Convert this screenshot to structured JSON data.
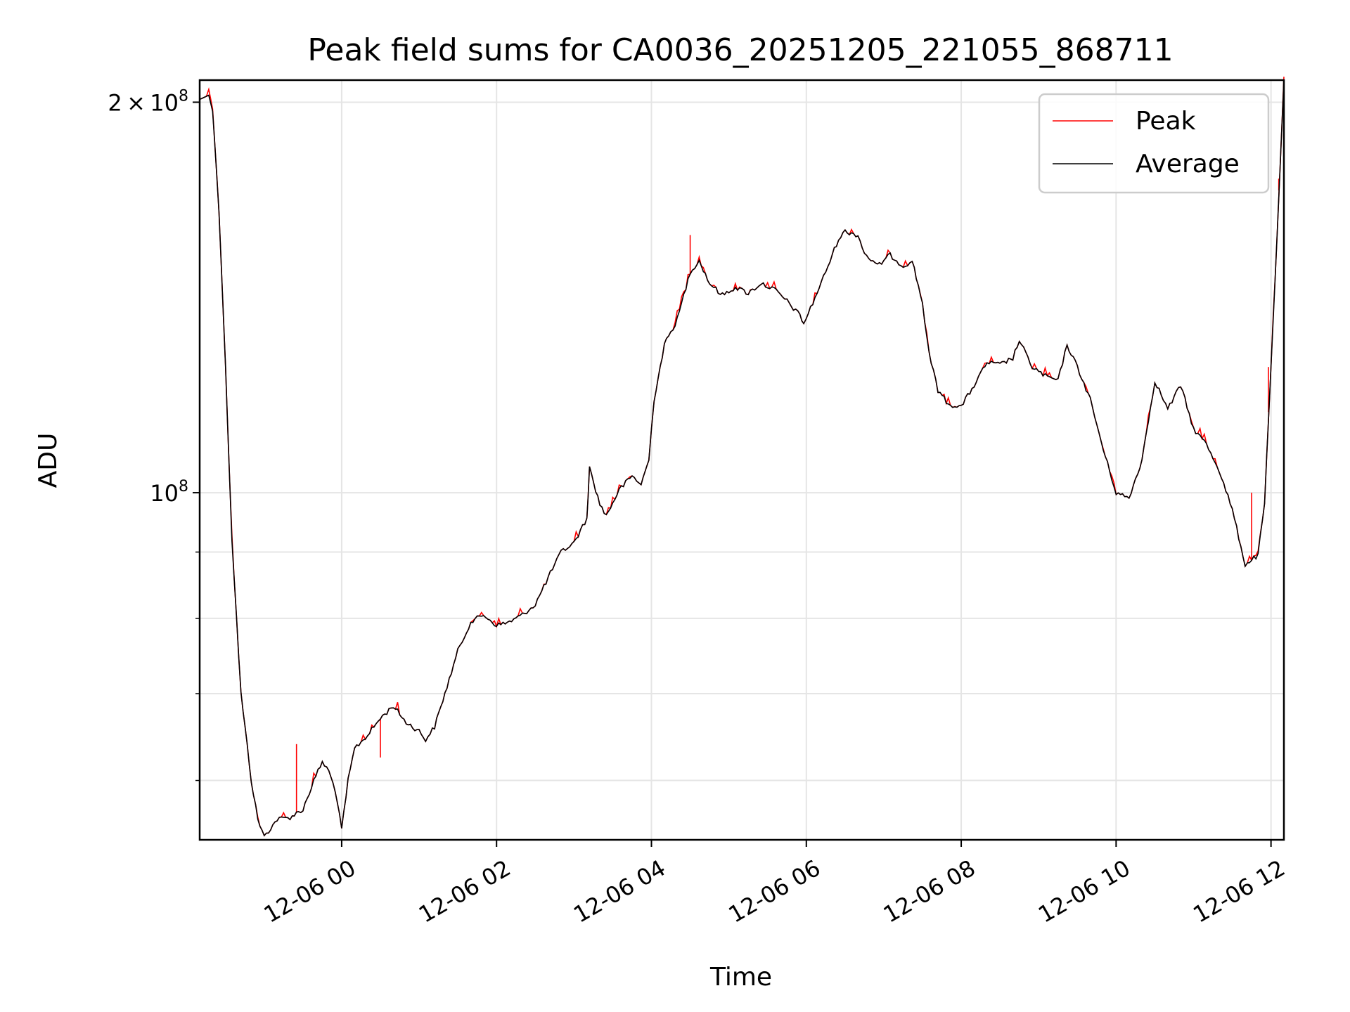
{
  "chart_data": {
    "type": "line",
    "title": "Peak field sums for CA0036_20251205_221055_868711",
    "xlabel": "Time",
    "ylabel": "ADU",
    "y_scale": "log",
    "ylim": [
      54000000,
      208000000
    ],
    "xlim": [
      "2025-12-05 22:10",
      "2025-12-06 12:10"
    ],
    "grid": true,
    "legend_position": "top-right",
    "x_ticks": [
      "12-06 00",
      "12-06 02",
      "12-06 04",
      "12-06 06",
      "12-06 08",
      "12-06 10",
      "12-06 12"
    ],
    "x_tick_times": [
      "2025-12-06 00:00",
      "2025-12-06 02:00",
      "2025-12-06 04:00",
      "2025-12-06 06:00",
      "2025-12-06 08:00",
      "2025-12-06 10:00",
      "2025-12-06 12:00"
    ],
    "y_major_ticks": [
      {
        "value": 100000000,
        "mantissa": "",
        "exponent": "8"
      },
      {
        "value": 200000000,
        "mantissa": "2",
        "exponent": "8"
      }
    ],
    "y_minor_ticks": [
      60000000,
      70000000,
      80000000,
      90000000
    ],
    "series": [
      {
        "name": "Peak",
        "color": "#ff0000",
        "spikes": [
          {
            "t": "2025-12-05 23:25",
            "v": 64000000
          },
          {
            "t": "2025-12-06 00:30",
            "v": 62500000
          },
          {
            "t": "2025-12-06 04:30",
            "v": 158000000
          },
          {
            "t": "2025-12-06 11:45",
            "v": 100000000
          },
          {
            "t": "2025-12-06 11:58",
            "v": 125000000
          },
          {
            "t": "2025-12-06 12:06",
            "v": 171000000
          }
        ]
      },
      {
        "name": "Average",
        "color": "#000000",
        "points": [
          [
            "2025-12-05 22:10",
            201000000
          ],
          [
            "2025-12-05 22:17",
            202500000
          ],
          [
            "2025-12-05 22:20",
            197000000
          ],
          [
            "2025-12-05 22:25",
            165000000
          ],
          [
            "2025-12-05 22:30",
            125000000
          ],
          [
            "2025-12-05 22:35",
            92000000
          ],
          [
            "2025-12-05 22:42",
            70000000
          ],
          [
            "2025-12-05 22:50",
            60000000
          ],
          [
            "2025-12-05 22:55",
            56000000
          ],
          [
            "2025-12-05 23:00",
            54300000
          ],
          [
            "2025-12-05 23:10",
            56000000
          ],
          [
            "2025-12-05 23:20",
            56200000
          ],
          [
            "2025-12-05 23:30",
            57000000
          ],
          [
            "2025-12-05 23:40",
            60500000
          ],
          [
            "2025-12-05 23:45",
            62000000
          ],
          [
            "2025-12-05 23:50",
            61000000
          ],
          [
            "2025-12-05 23:55",
            59000000
          ],
          [
            "2025-12-06 00:00",
            55000000
          ],
          [
            "2025-12-06 00:05",
            60000000
          ],
          [
            "2025-12-06 00:10",
            63500000
          ],
          [
            "2025-12-06 00:20",
            65000000
          ],
          [
            "2025-12-06 00:30",
            67000000
          ],
          [
            "2025-12-06 00:40",
            68500000
          ],
          [
            "2025-12-06 00:50",
            66500000
          ],
          [
            "2025-12-06 01:00",
            65500000
          ],
          [
            "2025-12-06 01:05",
            64500000
          ],
          [
            "2025-12-06 01:12",
            66000000
          ],
          [
            "2025-12-06 01:20",
            70000000
          ],
          [
            "2025-12-06 01:30",
            75500000
          ],
          [
            "2025-12-06 01:40",
            79500000
          ],
          [
            "2025-12-06 01:50",
            80500000
          ],
          [
            "2025-12-06 02:00",
            79000000
          ],
          [
            "2025-12-06 02:10",
            79500000
          ],
          [
            "2025-12-06 02:20",
            80500000
          ],
          [
            "2025-12-06 02:30",
            82000000
          ],
          [
            "2025-12-06 02:40",
            86000000
          ],
          [
            "2025-12-06 02:50",
            90000000
          ],
          [
            "2025-12-06 03:00",
            91500000
          ],
          [
            "2025-12-06 03:10",
            95500000
          ],
          [
            "2025-12-06 03:12",
            104500000
          ],
          [
            "2025-12-06 03:20",
            98000000
          ],
          [
            "2025-12-06 03:25",
            96000000
          ],
          [
            "2025-12-06 03:35",
            100500000
          ],
          [
            "2025-12-06 03:45",
            103000000
          ],
          [
            "2025-12-06 03:52",
            101500000
          ],
          [
            "2025-12-06 03:58",
            106000000
          ],
          [
            "2025-12-06 04:02",
            118000000
          ],
          [
            "2025-12-06 04:10",
            130000000
          ],
          [
            "2025-12-06 04:20",
            136000000
          ],
          [
            "2025-12-06 04:30",
            148000000
          ],
          [
            "2025-12-06 04:37",
            151000000
          ],
          [
            "2025-12-06 04:45",
            145000000
          ],
          [
            "2025-12-06 04:55",
            142000000
          ],
          [
            "2025-12-06 05:05",
            144000000
          ],
          [
            "2025-12-06 05:15",
            142500000
          ],
          [
            "2025-12-06 05:25",
            145000000
          ],
          [
            "2025-12-06 05:35",
            143500000
          ],
          [
            "2025-12-06 05:45",
            140500000
          ],
          [
            "2025-12-06 05:55",
            137000000
          ],
          [
            "2025-12-06 05:58",
            135000000
          ],
          [
            "2025-12-06 06:05",
            140000000
          ],
          [
            "2025-12-06 06:15",
            148000000
          ],
          [
            "2025-12-06 06:25",
            157000000
          ],
          [
            "2025-12-06 06:30",
            159000000
          ],
          [
            "2025-12-06 06:40",
            158000000
          ],
          [
            "2025-12-06 06:45",
            153000000
          ],
          [
            "2025-12-06 06:55",
            149500000
          ],
          [
            "2025-12-06 07:05",
            152500000
          ],
          [
            "2025-12-06 07:15",
            149500000
          ],
          [
            "2025-12-06 07:22",
            151000000
          ],
          [
            "2025-12-06 07:30",
            140000000
          ],
          [
            "2025-12-06 07:35",
            128000000
          ],
          [
            "2025-12-06 07:42",
            120000000
          ],
          [
            "2025-12-06 07:50",
            117000000
          ],
          [
            "2025-12-06 08:00",
            116500000
          ],
          [
            "2025-12-06 08:10",
            121000000
          ],
          [
            "2025-12-06 08:20",
            126000000
          ],
          [
            "2025-12-06 08:30",
            125500000
          ],
          [
            "2025-12-06 08:40",
            127000000
          ],
          [
            "2025-12-06 08:45",
            131000000
          ],
          [
            "2025-12-06 08:55",
            125000000
          ],
          [
            "2025-12-06 09:05",
            123000000
          ],
          [
            "2025-12-06 09:15",
            122000000
          ],
          [
            "2025-12-06 09:22",
            130000000
          ],
          [
            "2025-12-06 09:30",
            125000000
          ],
          [
            "2025-12-06 09:40",
            118000000
          ],
          [
            "2025-12-06 09:50",
            108000000
          ],
          [
            "2025-12-06 10:00",
            100000000
          ],
          [
            "2025-12-06 10:10",
            99000000
          ],
          [
            "2025-12-06 10:20",
            106000000
          ],
          [
            "2025-12-06 10:30",
            122000000
          ],
          [
            "2025-12-06 10:40",
            116000000
          ],
          [
            "2025-12-06 10:50",
            121000000
          ],
          [
            "2025-12-06 11:00",
            112000000
          ],
          [
            "2025-12-06 11:10",
            109000000
          ],
          [
            "2025-12-06 11:20",
            104000000
          ],
          [
            "2025-12-06 11:30",
            97000000
          ],
          [
            "2025-12-06 11:40",
            88000000
          ],
          [
            "2025-12-06 11:50",
            89500000
          ],
          [
            "2025-12-06 11:55",
            98000000
          ],
          [
            "2025-12-06 12:00",
            125000000
          ],
          [
            "2025-12-06 12:05",
            160000000
          ],
          [
            "2025-12-06 12:10",
            208000000
          ]
        ]
      }
    ]
  }
}
